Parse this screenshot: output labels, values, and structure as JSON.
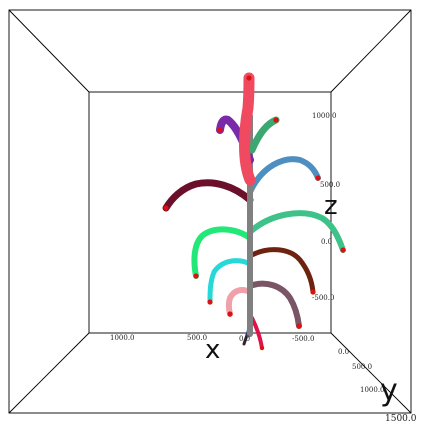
{
  "viewport": {
    "ticks": {
      "z_1000": "1000.0",
      "z_500": "500.0",
      "z_0": "0.0",
      "z_neg500": "-500.0",
      "x_1000": "1000.0",
      "x_500": "500.0",
      "x_0": "0.0",
      "x_neg500": "-500.0",
      "y_0": "0.0",
      "y_500": "500.0",
      "y_1000": "1000.0",
      "y_1500": "1500.0"
    },
    "axis_letters": {
      "x": "x",
      "y": "y",
      "z": "z"
    }
  },
  "colors": {
    "box_line": "#000000",
    "stem": "#808080",
    "leaf_tip": "#dd1111",
    "leaf_maroon": "#6b0f2a",
    "leaf_blue": "#4d8fc0",
    "leaf_green_left": "#22e878",
    "leaf_teal_right": "#3ec28a",
    "leaf_cyan": "#26d8d8",
    "leaf_brown": "#6e2310",
    "leaf_pink": "#f0a0a8",
    "leaf_mauve": "#7a5565",
    "leaf_red_top": "#f04a60",
    "leaf_purple": "#7a2aa8",
    "leaf_green_top": "#3aa870",
    "leaf_crimson": "#e0104a"
  }
}
